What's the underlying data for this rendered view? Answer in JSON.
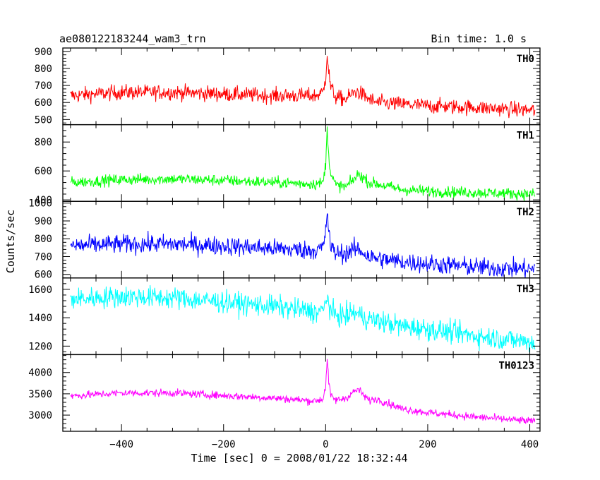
{
  "header": {
    "title": "ae080122183244_wam3_trn",
    "bin_time": "Bin time: 1.0 s"
  },
  "axes": {
    "xlabel": "Time [sec] 0 = 2008/01/22 18:32:44",
    "ylabel": "Counts/sec"
  },
  "chart_data": {
    "type": "line",
    "title": "ae080122183244_wam3_trn",
    "xlabel": "Time [sec] 0 = 2008/01/22 18:32:44",
    "ylabel": "Counts/sec",
    "bin_time_s": 1.0,
    "xlim": [
      -515,
      420
    ],
    "x_ticks": [
      -400,
      -200,
      0,
      200,
      400
    ],
    "grid": false,
    "legend": "none",
    "panels": [
      {
        "name": "TH0",
        "color": "#ff0000",
        "ylim": [
          470,
          920
        ],
        "y_ticks": [
          500,
          600,
          700,
          800,
          900
        ],
        "noise": 32,
        "series": {
          "x": [
            -500,
            -400,
            -300,
            -200,
            -100,
            -20,
            -5,
            0,
            3,
            6,
            10,
            20,
            40,
            55,
            65,
            75,
            85,
            100,
            150,
            200,
            300,
            400,
            410
          ],
          "values": [
            640,
            660,
            660,
            650,
            640,
            640,
            660,
            750,
            890,
            780,
            690,
            630,
            620,
            660,
            660,
            640,
            620,
            600,
            590,
            580,
            570,
            555,
            555
          ]
        }
      },
      {
        "name": "TH1",
        "color": "#00ff00",
        "ylim": [
          390,
          920
        ],
        "y_ticks": [
          400,
          600,
          800
        ],
        "noise": 28,
        "series": {
          "x": [
            -500,
            -400,
            -300,
            -200,
            -100,
            -20,
            -5,
            0,
            3,
            6,
            10,
            20,
            40,
            55,
            65,
            75,
            85,
            100,
            150,
            200,
            300,
            400,
            410
          ],
          "values": [
            520,
            540,
            545,
            535,
            520,
            510,
            520,
            650,
            880,
            720,
            580,
            500,
            490,
            540,
            580,
            550,
            520,
            510,
            470,
            460,
            450,
            440,
            440
          ]
        }
      },
      {
        "name": "TH2",
        "color": "#0000ff",
        "ylim": [
          580,
          1010
        ],
        "y_ticks": [
          600,
          700,
          800,
          900,
          1000
        ],
        "noise": 38,
        "series": {
          "x": [
            -500,
            -400,
            -300,
            -200,
            -100,
            -20,
            -5,
            0,
            3,
            6,
            10,
            20,
            40,
            55,
            65,
            75,
            85,
            100,
            150,
            200,
            300,
            400,
            410
          ],
          "values": [
            760,
            770,
            770,
            760,
            745,
            735,
            750,
            830,
            960,
            850,
            750,
            720,
            720,
            740,
            740,
            720,
            700,
            690,
            670,
            660,
            640,
            630,
            630
          ]
        }
      },
      {
        "name": "TH3",
        "color": "#00ffff",
        "ylim": [
          1140,
          1680
        ],
        "y_ticks": [
          1200,
          1400,
          1600
        ],
        "noise": 55,
        "series": {
          "x": [
            -500,
            -400,
            -300,
            -200,
            -100,
            -20,
            -5,
            0,
            3,
            6,
            10,
            20,
            40,
            55,
            65,
            75,
            85,
            100,
            150,
            200,
            300,
            400,
            410
          ],
          "values": [
            1530,
            1550,
            1540,
            1510,
            1480,
            1440,
            1450,
            1500,
            1570,
            1500,
            1440,
            1420,
            1410,
            1440,
            1420,
            1400,
            1390,
            1380,
            1340,
            1320,
            1270,
            1230,
            1220
          ]
        }
      },
      {
        "name": "TH0123",
        "color": "#ff00ff",
        "ylim": [
          2620,
          4420
        ],
        "y_ticks": [
          3000,
          3500,
          4000
        ],
        "noise": 65,
        "series": {
          "x": [
            -500,
            -400,
            -300,
            -200,
            -100,
            -20,
            -5,
            0,
            3,
            6,
            10,
            20,
            40,
            55,
            65,
            75,
            85,
            100,
            150,
            200,
            300,
            400,
            410
          ],
          "values": [
            3450,
            3520,
            3520,
            3460,
            3400,
            3330,
            3380,
            3700,
            4300,
            3800,
            3450,
            3350,
            3400,
            3550,
            3600,
            3450,
            3350,
            3380,
            3150,
            3060,
            2950,
            2860,
            2850
          ]
        }
      }
    ]
  }
}
